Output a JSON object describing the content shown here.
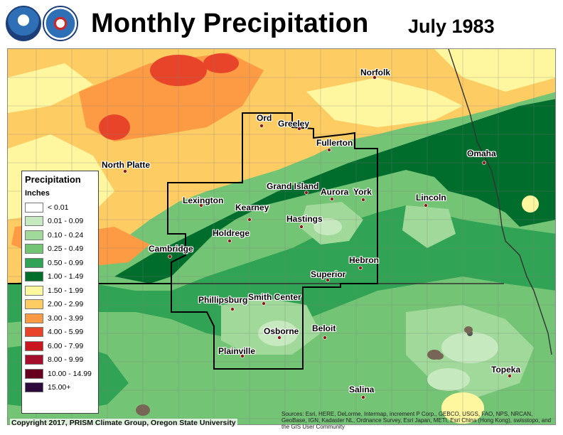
{
  "header": {
    "title": "Monthly Precipitation",
    "period": "July 1983",
    "logos": [
      "noaa-logo",
      "nws-logo"
    ]
  },
  "legend": {
    "title": "Precipitation",
    "units": "Inches",
    "classes": [
      {
        "label": "< 0.01",
        "color": "#ffffff"
      },
      {
        "label": "0.01 - 0.09",
        "color": "#c7e9c0"
      },
      {
        "label": "0.10 - 0.24",
        "color": "#a1d99b"
      },
      {
        "label": "0.25 - 0.49",
        "color": "#74c476"
      },
      {
        "label": "0.50 - 0.99",
        "color": "#31a354"
      },
      {
        "label": "1.00 - 1.49",
        "color": "#006d2c"
      },
      {
        "label": "1.50 - 1.99",
        "color": "#fff7a0"
      },
      {
        "label": "2.00 - 2.99",
        "color": "#fdcc63"
      },
      {
        "label": "3.00 - 3.99",
        "color": "#fd9a44"
      },
      {
        "label": "4.00 - 5.99",
        "color": "#e8442a"
      },
      {
        "label": "6.00 - 7.99",
        "color": "#c8171e"
      },
      {
        "label": "8.00 - 9.99",
        "color": "#a50f2d"
      },
      {
        "label": "10.00 - 14.99",
        "color": "#67001f"
      },
      {
        "label": "15.00+",
        "color": "#2d0a3c"
      }
    ]
  },
  "cities": [
    {
      "name": "Norfolk"
    },
    {
      "name": "Ord"
    },
    {
      "name": "Greeley"
    },
    {
      "name": "Fullerton"
    },
    {
      "name": "North Platte"
    },
    {
      "name": "Omaha"
    },
    {
      "name": "Grand Island"
    },
    {
      "name": "Aurora"
    },
    {
      "name": "York"
    },
    {
      "name": "Lincoln"
    },
    {
      "name": "Lexington"
    },
    {
      "name": "Kearney"
    },
    {
      "name": "Hastings"
    },
    {
      "name": "Holdrege"
    },
    {
      "name": "Cambridge"
    },
    {
      "name": "Hebron"
    },
    {
      "name": "Superior"
    },
    {
      "name": "Phillipsburg"
    },
    {
      "name": "Smith Center"
    },
    {
      "name": "Osborne"
    },
    {
      "name": "Beloit"
    },
    {
      "name": "Plainville"
    },
    {
      "name": "Topeka"
    },
    {
      "name": "Salina"
    }
  ],
  "footer": {
    "copyright": "Copyright 2017, PRISM Climate Group, Oregon State University",
    "attribution": "Sources: Esri, HERE, DeLorme, Intermap, increment P Corp., GEBCO, USGS, FAO, NPS, NRCAN, GeoBase, IGN, Kadaster NL, Ordnance Survey, Esri Japan, METI, Esri China (Hong Kong), swisstopo, and the GIS User Community"
  }
}
